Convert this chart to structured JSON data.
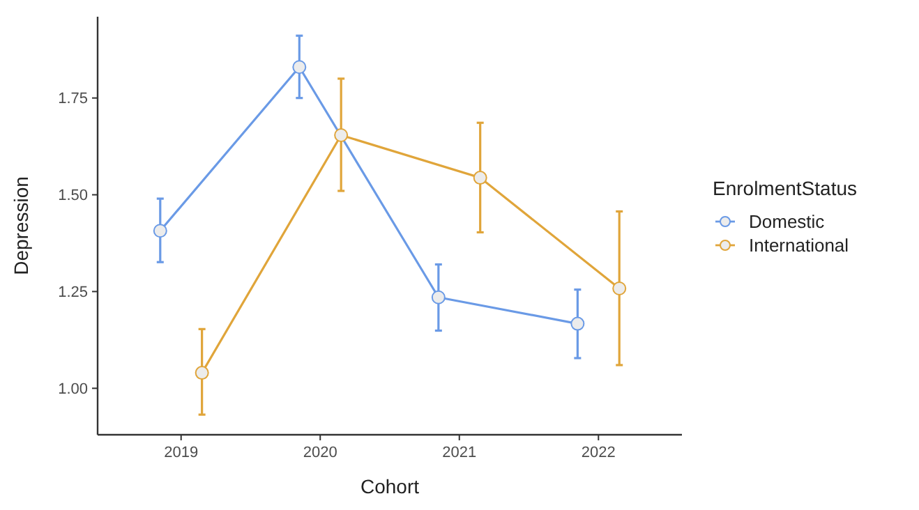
{
  "chart_data": {
    "type": "line",
    "xlabel": "Cohort",
    "ylabel": "Depression",
    "legend_title": "EnrolmentStatus",
    "categories": [
      "2019",
      "2020",
      "2021",
      "2022"
    ],
    "series": [
      {
        "name": "Domestic",
        "color": "#6a9ae6",
        "values": [
          1.407,
          1.83,
          1.235,
          1.167
        ],
        "errors": [
          [
            1.326,
            1.49
          ],
          [
            1.75,
            1.911
          ],
          [
            1.149,
            1.32
          ],
          [
            1.078,
            1.255
          ]
        ]
      },
      {
        "name": "International",
        "color": "#e0a53a",
        "values": [
          1.04,
          1.654,
          1.544,
          1.258
        ],
        "errors": [
          [
            0.932,
            1.153
          ],
          [
            1.51,
            1.8
          ],
          [
            1.403,
            1.686
          ],
          [
            1.06,
            1.457
          ]
        ]
      }
    ],
    "ylim": [
      0.88,
      1.96
    ],
    "yticks": [
      {
        "value": 1,
        "label": "1.00"
      },
      {
        "value": 1.25,
        "label": "1.25"
      },
      {
        "value": 1.5,
        "label": "1.50"
      },
      {
        "value": 1.75,
        "label": "1.75"
      }
    ],
    "grid": false,
    "legend": "right",
    "marker": "circle",
    "line_style": "solid"
  }
}
